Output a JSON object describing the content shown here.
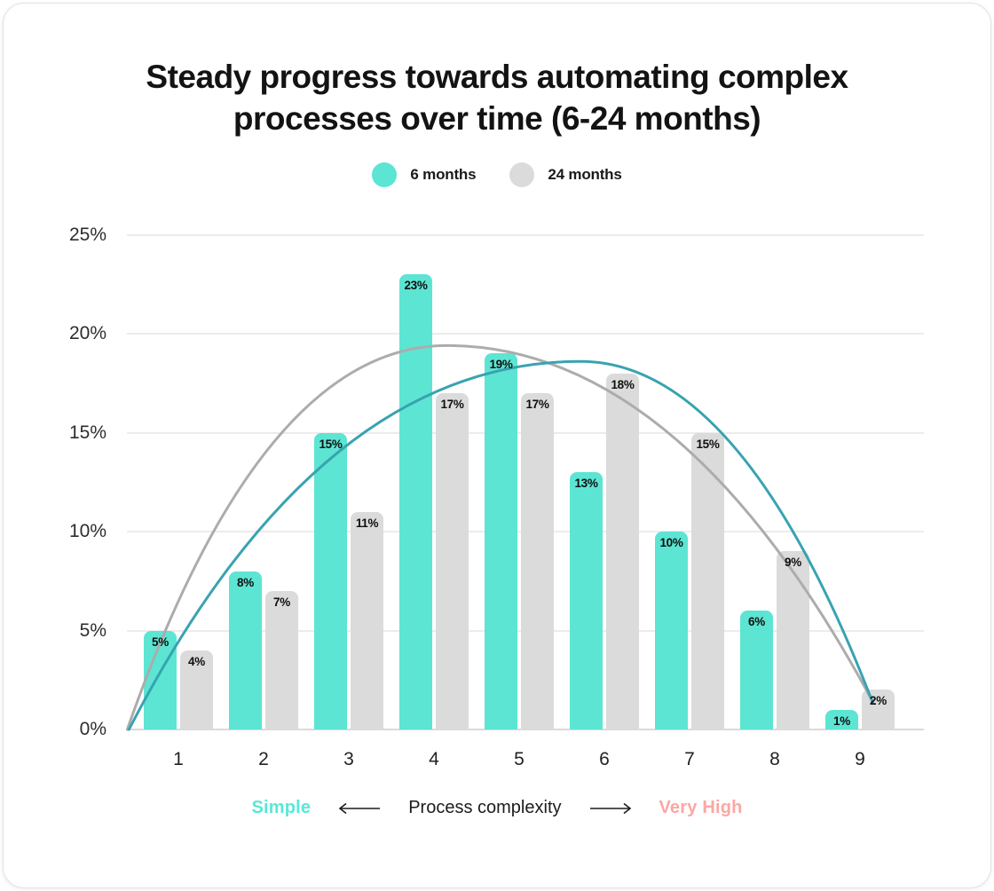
{
  "header": {
    "lines": [
      "Steady progress towards automating complex",
      "processes over time (6-24 months)"
    ]
  },
  "footer": {
    "left": "Simple",
    "center": "Process complexity",
    "right": "Very High",
    "left_color": "#59e8d6",
    "right_color": "#fba7a3",
    "arrow_color": "#1a1a1a"
  },
  "chart_data": {
    "type": "bar",
    "title": "Steady progress towards automating complex processes over time (6-24 months)",
    "categories": [
      "1",
      "2",
      "3",
      "4",
      "5",
      "6",
      "7",
      "8",
      "9"
    ],
    "series": [
      {
        "name": "6 months",
        "color": "#5ce5d3",
        "values": [
          5,
          8,
          15,
          23,
          19,
          13,
          10,
          6,
          1
        ]
      },
      {
        "name": "24 months",
        "color": "#dbdbdb",
        "values": [
          4,
          7,
          11,
          17,
          17,
          18,
          15,
          9,
          2
        ]
      }
    ],
    "value_suffix": "%",
    "ylim": [
      0,
      25
    ],
    "y_ticks": [
      25,
      20,
      15,
      10,
      5,
      0
    ],
    "y_tick_labels": [
      "25%",
      "20%",
      "15%",
      "10%",
      "5%",
      "0%"
    ],
    "grid": true,
    "legend_position": "top",
    "xlabel": "Process complexity",
    "x_axis_scale": {
      "low": "Simple",
      "high": "Very High"
    },
    "curves": [
      {
        "name": "24 months trend",
        "color": "#acacac",
        "start": {
          "x": 0.4,
          "y": 0
        },
        "peak": {
          "x": 4.15,
          "y": 19.4
        },
        "end": {
          "x": 9.15,
          "y": 1.4
        }
      },
      {
        "name": "6 months trend",
        "color": "#39a3b0",
        "start": {
          "x": 0.42,
          "y": 0
        },
        "peak": {
          "x": 5.72,
          "y": 18.6
        },
        "end": {
          "x": 9.15,
          "y": 1.35
        }
      }
    ]
  }
}
